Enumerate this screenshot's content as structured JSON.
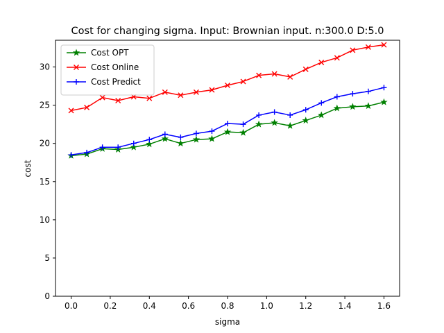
{
  "chart_data": {
    "type": "line",
    "title": "Cost for changing sigma. Input: Brownian input. n:300.0 D:5.0",
    "xlabel": "sigma",
    "ylabel": "cost",
    "xlim": [
      -0.08,
      1.68
    ],
    "ylim": [
      0,
      33.5
    ],
    "xticks": [
      0.0,
      0.2,
      0.4,
      0.6,
      0.8,
      1.0,
      1.2,
      1.4,
      1.6
    ],
    "xtick_labels": [
      "0.0",
      "0.2",
      "0.4",
      "0.6",
      "0.8",
      "1.0",
      "1.2",
      "1.4",
      "1.6"
    ],
    "yticks": [
      0,
      5,
      10,
      15,
      20,
      25,
      30
    ],
    "ytick_labels": [
      "0",
      "5",
      "10",
      "15",
      "20",
      "25",
      "30"
    ],
    "grid": false,
    "legend_position": "upper-left",
    "x": [
      0.0,
      0.08,
      0.16,
      0.24,
      0.32,
      0.4,
      0.48,
      0.56,
      0.64,
      0.72,
      0.8,
      0.88,
      0.96,
      1.04,
      1.12,
      1.2,
      1.28,
      1.36,
      1.44,
      1.52,
      1.6
    ],
    "series": [
      {
        "name": "Cost OPT",
        "color": "#008000",
        "marker": "star",
        "values": [
          18.4,
          18.6,
          19.3,
          19.2,
          19.5,
          19.9,
          20.6,
          20.0,
          20.5,
          20.6,
          21.5,
          21.4,
          22.5,
          22.7,
          22.3,
          23.0,
          23.7,
          24.6,
          24.8,
          24.9,
          25.4
        ]
      },
      {
        "name": "Cost Online",
        "color": "#ff0000",
        "marker": "x",
        "values": [
          24.3,
          24.7,
          26.0,
          25.6,
          26.1,
          25.9,
          26.7,
          26.3,
          26.7,
          27.0,
          27.6,
          28.1,
          28.9,
          29.1,
          28.7,
          29.7,
          30.6,
          31.2,
          32.2,
          32.6,
          32.9
        ]
      },
      {
        "name": "Cost Predict",
        "color": "#0000ff",
        "marker": "plus",
        "values": [
          18.5,
          18.8,
          19.5,
          19.5,
          20.0,
          20.5,
          21.2,
          20.8,
          21.3,
          21.6,
          22.6,
          22.5,
          23.7,
          24.1,
          23.7,
          24.4,
          25.3,
          26.1,
          26.5,
          26.8,
          27.3
        ]
      }
    ]
  }
}
